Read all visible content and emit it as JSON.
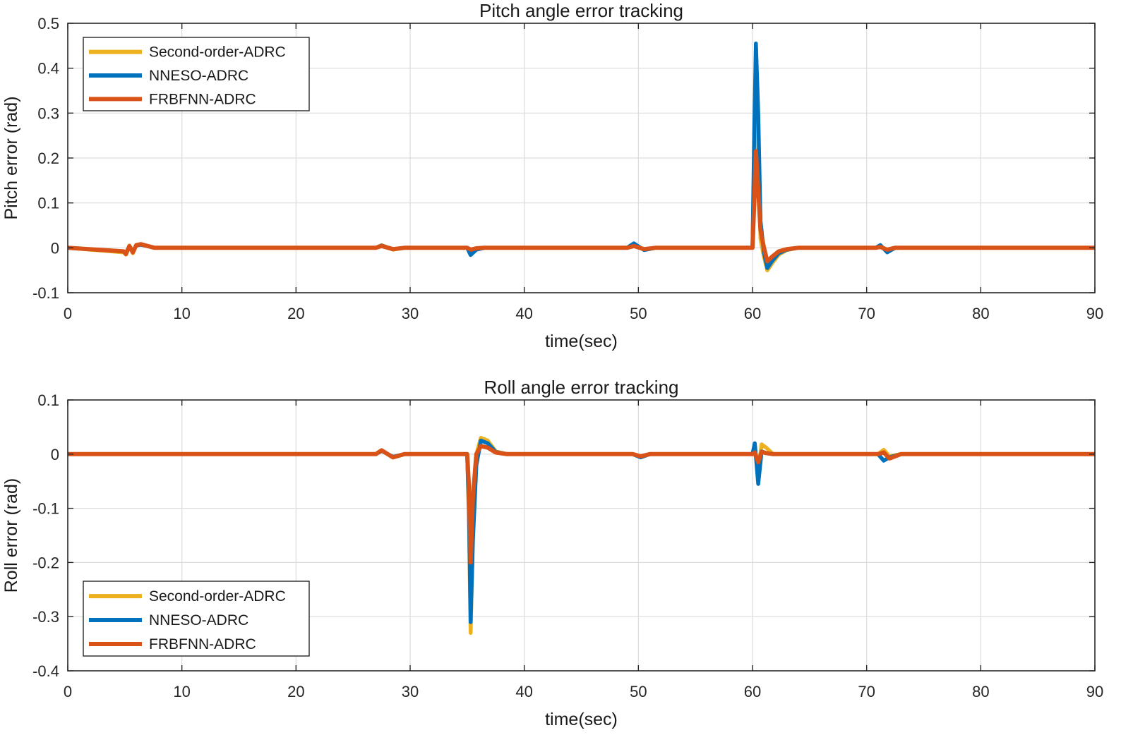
{
  "chart_data": [
    {
      "id": "pitch",
      "type": "line",
      "title": "Pitch angle error tracking",
      "xlabel": "time(sec)",
      "ylabel": "Pitch error (rad)",
      "xlim": [
        0,
        90
      ],
      "ylim": [
        -0.1,
        0.5
      ],
      "xticks": [
        0,
        10,
        20,
        30,
        40,
        50,
        60,
        70,
        80,
        90
      ],
      "yticks": [
        -0.1,
        0,
        0.1,
        0.2,
        0.3,
        0.4,
        0.5
      ],
      "ytick_labels": [
        "-0.1",
        "0",
        "0.1",
        "0.2",
        "0.3",
        "0.4",
        "0.5"
      ],
      "grid": true,
      "legend_position": "top-left",
      "series": [
        {
          "name": "Second-order-ADRC",
          "color": "#EDB120",
          "x": [
            0,
            4.9,
            5.1,
            5.4,
            5.7,
            6.0,
            6.4,
            7.0,
            7.6,
            8.2,
            27,
            27.5,
            28.5,
            29.5,
            35,
            35.3,
            35.8,
            36.5,
            49.0,
            49.6,
            50.5,
            51.5,
            60.0,
            60.15,
            60.3,
            60.5,
            60.7,
            61.0,
            61.3,
            61.7,
            62.3,
            63.0,
            64.0,
            70.8,
            71.2,
            71.8,
            72.5,
            90
          ],
          "values": [
            0,
            -0.01,
            -0.015,
            0.005,
            -0.012,
            0.006,
            0.008,
            0.004,
            0.0,
            0,
            0,
            0.006,
            -0.004,
            0,
            0,
            -0.006,
            -0.002,
            0,
            0,
            0.006,
            -0.004,
            0,
            0,
            0.18,
            0.38,
            0.24,
            0.02,
            -0.02,
            -0.05,
            -0.035,
            -0.015,
            -0.005,
            0,
            0,
            0.003,
            -0.005,
            0,
            0
          ]
        },
        {
          "name": "NNESO-ADRC",
          "color": "#0072BD",
          "x": [
            0,
            4.9,
            5.1,
            5.4,
            5.7,
            6.0,
            6.4,
            7.0,
            7.6,
            8.2,
            27,
            27.5,
            28.5,
            29.5,
            35,
            35.3,
            35.8,
            36.5,
            49.0,
            49.6,
            50.5,
            51.5,
            60.0,
            60.15,
            60.3,
            60.5,
            60.7,
            61.0,
            61.3,
            61.7,
            62.3,
            63.0,
            64.0,
            70.8,
            71.2,
            71.8,
            72.5,
            90
          ],
          "values": [
            0,
            -0.008,
            -0.012,
            0.004,
            -0.01,
            0.005,
            0.007,
            0.004,
            0.0,
            0,
            0,
            0.005,
            -0.003,
            0,
            0,
            -0.016,
            -0.004,
            0,
            0,
            0.01,
            -0.005,
            0,
            0,
            0.25,
            0.455,
            0.3,
            0.06,
            -0.01,
            -0.045,
            -0.03,
            -0.012,
            -0.004,
            0,
            0,
            0.006,
            -0.01,
            0,
            0
          ]
        },
        {
          "name": "FRBFNN-ADRC",
          "color": "#D95319",
          "x": [
            0,
            4.9,
            5.1,
            5.4,
            5.7,
            6.0,
            6.4,
            7.0,
            7.6,
            8.2,
            27,
            27.5,
            28.5,
            29.5,
            35,
            35.3,
            35.8,
            36.5,
            49.0,
            49.6,
            50.5,
            51.5,
            60.0,
            60.15,
            60.3,
            60.5,
            60.7,
            61.0,
            61.3,
            61.7,
            62.3,
            63.0,
            64.0,
            70.8,
            71.2,
            71.8,
            72.5,
            90
          ],
          "values": [
            0,
            -0.008,
            -0.014,
            0.004,
            -0.01,
            0.006,
            0.008,
            0.004,
            0.0,
            0,
            0,
            0.004,
            -0.003,
            0,
            0,
            -0.004,
            -0.001,
            0,
            0,
            0.004,
            -0.003,
            0,
            0,
            0.1,
            0.215,
            0.13,
            0.04,
            0.0,
            -0.03,
            -0.02,
            -0.008,
            -0.003,
            0,
            0,
            0.002,
            -0.004,
            0,
            0
          ]
        }
      ]
    },
    {
      "id": "roll",
      "type": "line",
      "title": "Roll angle error tracking",
      "xlabel": "time(sec)",
      "ylabel": "Roll error (rad)",
      "xlim": [
        0,
        90
      ],
      "ylim": [
        -0.4,
        0.1
      ],
      "xticks": [
        0,
        10,
        20,
        30,
        40,
        50,
        60,
        70,
        80,
        90
      ],
      "yticks": [
        -0.4,
        -0.3,
        -0.2,
        -0.1,
        0,
        0.1
      ],
      "ytick_labels": [
        "-0.4",
        "-0.3",
        "-0.2",
        "-0.1",
        "0",
        "0.1"
      ],
      "grid": true,
      "legend_position": "bottom-left",
      "series": [
        {
          "name": "Second-order-ADRC",
          "color": "#EDB120",
          "x": [
            0,
            27,
            27.5,
            28.5,
            29.5,
            35.0,
            35.15,
            35.3,
            35.5,
            35.8,
            36.2,
            36.8,
            37.5,
            38.5,
            49.5,
            50.2,
            51.0,
            60.0,
            60.2,
            60.5,
            60.8,
            61.2,
            61.8,
            71.0,
            71.5,
            72.0,
            73.0,
            90
          ],
          "values": [
            0,
            0,
            0.007,
            -0.006,
            0,
            0,
            -0.12,
            -0.33,
            -0.15,
            0.0,
            0.03,
            0.025,
            0.005,
            0,
            0,
            -0.004,
            0,
            0,
            0.005,
            -0.03,
            0.018,
            0.012,
            0,
            0,
            0.008,
            -0.004,
            0,
            0
          ]
        },
        {
          "name": "NNESO-ADRC",
          "color": "#0072BD",
          "x": [
            0,
            27,
            27.5,
            28.5,
            29.5,
            35.0,
            35.15,
            35.3,
            35.5,
            35.8,
            36.2,
            36.8,
            37.5,
            38.5,
            49.5,
            50.2,
            51.0,
            60.0,
            60.2,
            60.5,
            60.8,
            61.2,
            61.8,
            71.0,
            71.5,
            72.0,
            73.0,
            90
          ],
          "values": [
            0,
            0,
            0.006,
            -0.005,
            0,
            0,
            -0.1,
            -0.31,
            -0.16,
            -0.02,
            0.025,
            0.02,
            0.004,
            0,
            0,
            -0.006,
            0,
            0,
            0.02,
            -0.055,
            0.005,
            0.002,
            0,
            0,
            -0.012,
            -0.006,
            0,
            0
          ]
        },
        {
          "name": "FRBFNN-ADRC",
          "color": "#D95319",
          "x": [
            0,
            27,
            27.5,
            28.5,
            29.5,
            35.0,
            35.15,
            35.3,
            35.5,
            35.8,
            36.2,
            36.8,
            37.5,
            38.5,
            49.5,
            50.2,
            51.0,
            60.0,
            60.2,
            60.5,
            60.8,
            61.2,
            61.8,
            71.0,
            71.5,
            72.0,
            73.0,
            90
          ],
          "values": [
            0,
            0,
            0.007,
            -0.006,
            0,
            0,
            -0.06,
            -0.2,
            -0.08,
            0.0,
            0.015,
            0.012,
            0.003,
            0,
            0,
            -0.004,
            0,
            0,
            0.003,
            -0.015,
            0.004,
            0.002,
            0,
            0,
            0.003,
            -0.008,
            0,
            0
          ]
        }
      ]
    }
  ]
}
